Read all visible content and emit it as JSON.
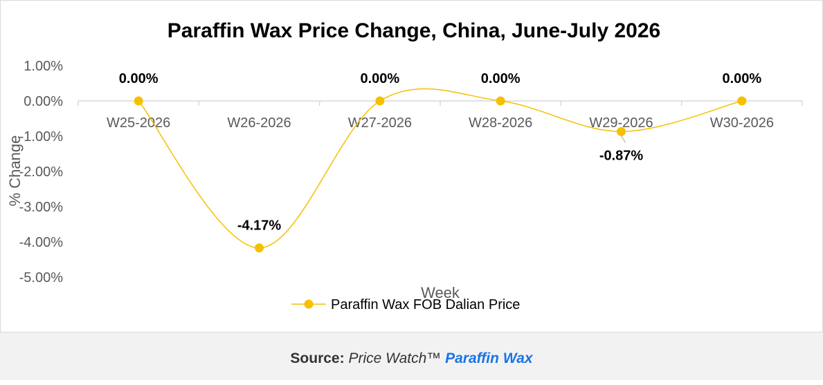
{
  "chart_data": {
    "type": "line",
    "title": "Paraffin Wax Price Change, China, June-July 2026",
    "xlabel": "Week",
    "ylabel": "% Change",
    "categories": [
      "W25-2026",
      "W26-2026",
      "W27-2026",
      "W28-2026",
      "W29-2026",
      "W30-2026"
    ],
    "series": [
      {
        "name": "Paraffin Wax FOB Dalian Price",
        "values": [
          0.0,
          -4.17,
          0.0,
          0.0,
          -0.87,
          0.0
        ],
        "data_labels": [
          "0.00%",
          "-4.17%",
          "0.00%",
          "0.00%",
          "-0.87%",
          "0.00%"
        ],
        "color": "#f5c000"
      }
    ],
    "y_ticks": [
      1,
      0,
      -1,
      -2,
      -3,
      -4,
      -5
    ],
    "y_tick_labels": [
      "1.00%",
      "0.00%",
      "-1.00%",
      "-2.00%",
      "-3.00%",
      "-4.00%",
      "-5.00%"
    ],
    "ylim": [
      -5,
      1
    ],
    "smooth": true,
    "grid": false,
    "legend_position": "bottom"
  },
  "footer": {
    "label": "Source:",
    "text": "Price Watch™",
    "link": "Paraffin Wax"
  }
}
